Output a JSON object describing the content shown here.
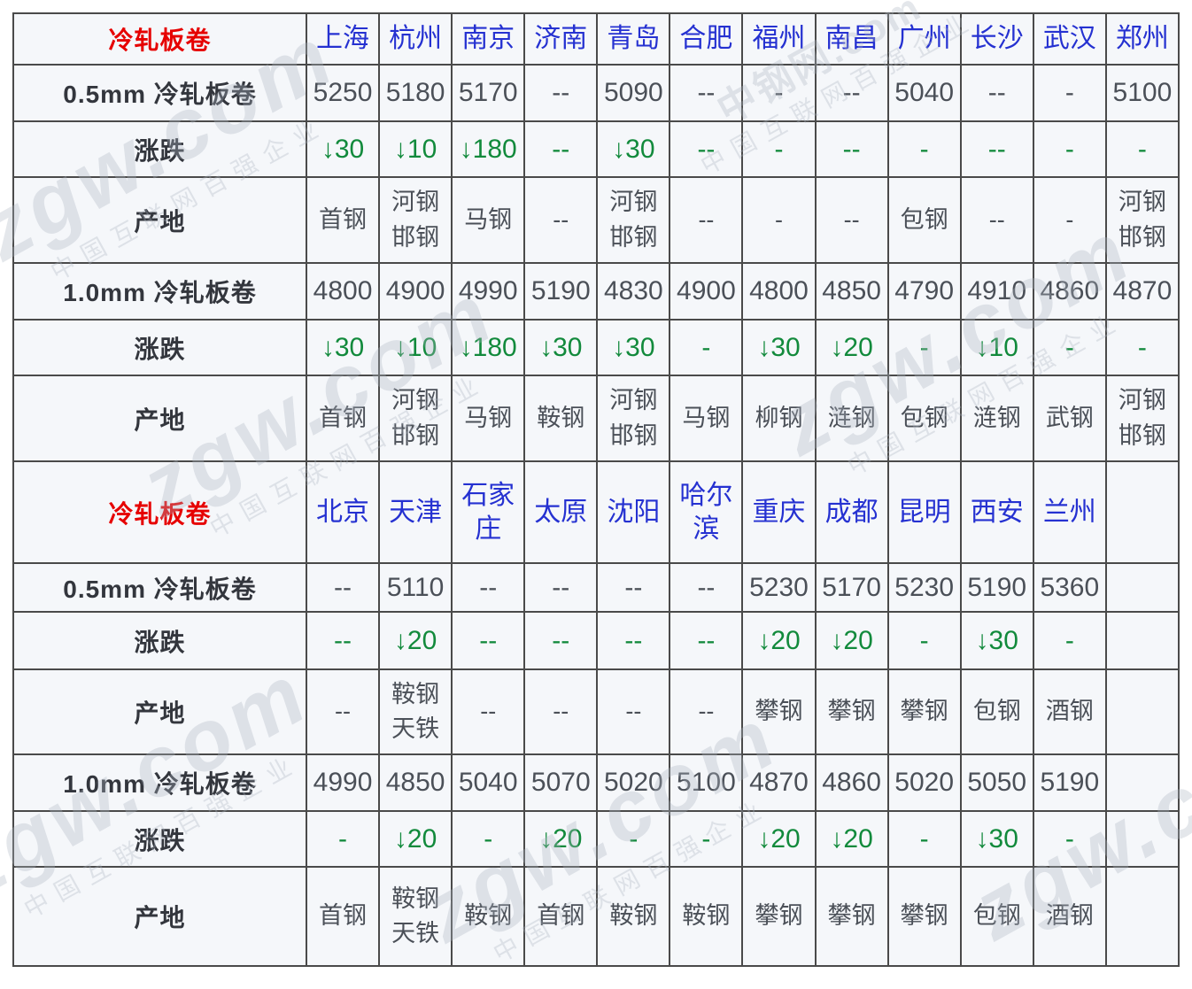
{
  "colors": {
    "header_blue": "#2531d1",
    "section_red": "#e60000",
    "price_text": "#4b5058",
    "change_green": "#128a3c",
    "border": "#4a4a4a",
    "cell_background": "#f5f7fa"
  },
  "watermark": {
    "brand": "zgw.com",
    "site": "中钢网.com",
    "slogan": "中国互联网百强企业"
  },
  "table": {
    "rows": [
      {
        "kind": "section-header",
        "label": "冷轧板卷",
        "cells": [
          "上海",
          "杭州",
          "南京",
          "济南",
          "青岛",
          "合肥",
          "福州",
          "南昌",
          "广州",
          "长沙",
          "武汉",
          "郑州"
        ]
      },
      {
        "kind": "price",
        "label": "0.5mm 冷轧板卷",
        "cells": [
          "5250",
          "5180",
          "5170",
          "--",
          "5090",
          "--",
          "-",
          "--",
          "5040",
          "--",
          "-",
          "5100"
        ]
      },
      {
        "kind": "change",
        "label": "涨跌",
        "cells": [
          "↓30",
          "↓10",
          "↓180",
          "--",
          "↓30",
          "--",
          "-",
          "--",
          "-",
          "--",
          "-",
          "-"
        ]
      },
      {
        "kind": "origin",
        "label": "产地",
        "cells": [
          "首钢",
          "河钢邯钢",
          "马钢",
          "--",
          "河钢邯钢",
          "--",
          "-",
          "--",
          "包钢",
          "--",
          "-",
          "河钢邯钢"
        ]
      },
      {
        "kind": "price",
        "label": "1.0mm 冷轧板卷",
        "cells": [
          "4800",
          "4900",
          "4990",
          "5190",
          "4830",
          "4900",
          "4800",
          "4850",
          "4790",
          "4910",
          "4860",
          "4870"
        ]
      },
      {
        "kind": "change",
        "label": "涨跌",
        "cells": [
          "↓30",
          "↓10",
          "↓180",
          "↓30",
          "↓30",
          "-",
          "↓30",
          "↓20",
          "-",
          "↓10",
          "-",
          "-"
        ]
      },
      {
        "kind": "origin",
        "label": "产地",
        "cells": [
          "首钢",
          "河钢邯钢",
          "马钢",
          "鞍钢",
          "河钢邯钢",
          "马钢",
          "柳钢",
          "涟钢",
          "包钢",
          "涟钢",
          "武钢",
          "河钢邯钢"
        ]
      },
      {
        "kind": "section-header",
        "label": "冷轧板卷",
        "cells": [
          "北京",
          "天津",
          "石家庄",
          "太原",
          "沈阳",
          "哈尔滨",
          "重庆",
          "成都",
          "昆明",
          "西安",
          "兰州",
          ""
        ]
      },
      {
        "kind": "price",
        "label": "0.5mm 冷轧板卷",
        "cells": [
          "--",
          "5110",
          "--",
          "--",
          "--",
          "--",
          "5230",
          "5170",
          "5230",
          "5190",
          "5360",
          ""
        ]
      },
      {
        "kind": "change",
        "label": "涨跌",
        "cells": [
          "--",
          "↓20",
          "--",
          "--",
          "--",
          "--",
          "↓20",
          "↓20",
          "-",
          "↓30",
          "-",
          ""
        ]
      },
      {
        "kind": "origin",
        "label": "产地",
        "cells": [
          "--",
          "鞍钢天铁",
          "--",
          "--",
          "--",
          "--",
          "攀钢",
          "攀钢",
          "攀钢",
          "包钢",
          "酒钢",
          ""
        ]
      },
      {
        "kind": "price",
        "label": "1.0mm 冷轧板卷",
        "cells": [
          "4990",
          "4850",
          "5040",
          "5070",
          "5020",
          "5100",
          "4870",
          "4860",
          "5020",
          "5050",
          "5190",
          ""
        ]
      },
      {
        "kind": "change",
        "label": "涨跌",
        "cells": [
          "-",
          "↓20",
          "-",
          "↓20",
          "-",
          "-",
          "↓20",
          "↓20",
          "-",
          "↓30",
          "-",
          ""
        ]
      },
      {
        "kind": "origin",
        "label": "产地",
        "cells": [
          "首钢",
          "鞍钢天铁",
          "鞍钢",
          "首钢",
          "鞍钢",
          "鞍钢",
          "攀钢",
          "攀钢",
          "攀钢",
          "包钢",
          "酒钢",
          ""
        ]
      }
    ]
  }
}
